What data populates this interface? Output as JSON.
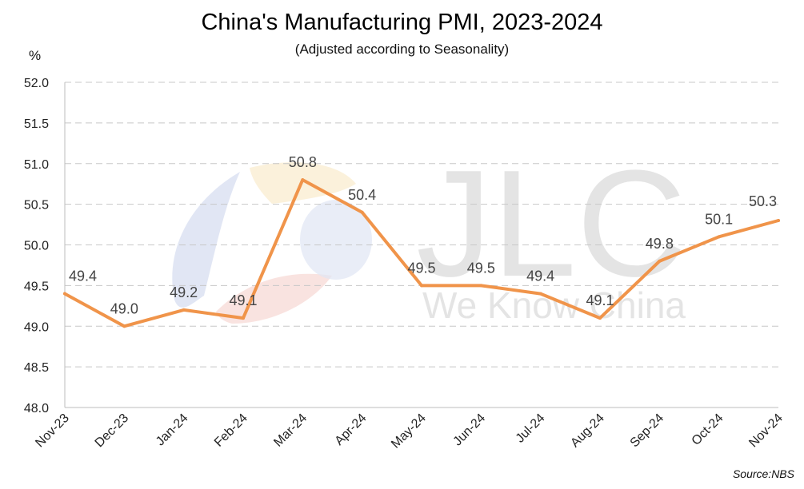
{
  "chart_data": {
    "type": "line",
    "title": "China's Manufacturing PMI, 2023-2024",
    "subtitle": "(Adjusted according to Seasonality)",
    "ylabel": "%",
    "xlabel": "",
    "source": "Source:NBS",
    "categories": [
      "Nov-23",
      "Dec-23",
      "Jan-24",
      "Feb-24",
      "Mar-24",
      "Apr-24",
      "May-24",
      "Jun-24",
      "Jul-24",
      "Aug-24",
      "Sep-24",
      "Oct-24",
      "Nov-24"
    ],
    "series": [
      {
        "values": [
          49.4,
          49.0,
          49.2,
          49.1,
          50.8,
          50.4,
          49.5,
          49.5,
          49.4,
          49.1,
          49.8,
          50.1,
          50.3
        ]
      }
    ],
    "data_labels": [
      "49.4",
      "49.0",
      "49.2",
      "49.1",
      "50.8",
      "50.4",
      "49.5",
      "49.5",
      "49.4",
      "49.1",
      "49.8",
      "50.1",
      "50.3"
    ],
    "ylim": [
      48.0,
      52.0
    ],
    "yticks": [
      "48.0",
      "48.5",
      "49.0",
      "49.5",
      "50.0",
      "50.5",
      "51.0",
      "51.5",
      "52.0"
    ],
    "grid": true,
    "legend": "none",
    "line_color": "#F0944A",
    "grid_color": "#C8C8C8",
    "watermark": {
      "brand": "JLC",
      "tagline": "We Know China"
    }
  }
}
